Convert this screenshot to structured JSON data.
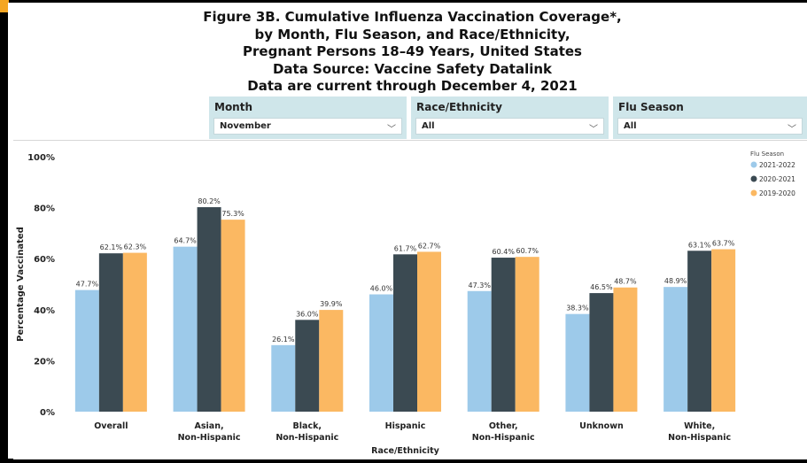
{
  "title_lines": [
    "Figure 3B. Cumulative Influenza Vaccination Coverage*,",
    "by Month, Flu Season, and Race/Ethnicity,",
    "Pregnant Persons 18–49 Years, United States",
    "Data Source: Vaccine Safety Datalink",
    "Data are current through December 4, 2021"
  ],
  "filters": {
    "month": {
      "label": "Month",
      "value": "November"
    },
    "race": {
      "label": "Race/Ethnicity",
      "value": "All"
    },
    "season": {
      "label": "Flu Season",
      "value": "All"
    }
  },
  "chart_data": {
    "type": "bar",
    "xlabel": "Race/Ethnicity",
    "ylabel": "Percentage Vaccinated",
    "ylim": [
      0,
      100
    ],
    "yticks": [
      "0%",
      "20%",
      "40%",
      "60%",
      "80%",
      "100%"
    ],
    "categories": [
      [
        "Overall"
      ],
      [
        "Asian,",
        "Non-Hispanic"
      ],
      [
        "Black,",
        "Non-Hispanic"
      ],
      [
        "Hispanic"
      ],
      [
        "Other,",
        "Non-Hispanic"
      ],
      [
        "Unknown"
      ],
      [
        "White,",
        "Non-Hispanic"
      ]
    ],
    "legend_title": "Flu Season",
    "legend_position": "top-right",
    "series": [
      {
        "name": "2021-2022",
        "color": "#9dcaea",
        "values": [
          47.7,
          64.7,
          26.1,
          46.0,
          47.3,
          38.3,
          48.9
        ]
      },
      {
        "name": "2020-2021",
        "color": "#3b4a52",
        "values": [
          62.1,
          80.2,
          36.0,
          61.7,
          60.4,
          46.5,
          63.1
        ]
      },
      {
        "name": "2019-2020",
        "color": "#fbb862",
        "values": [
          62.3,
          75.3,
          39.9,
          62.7,
          60.7,
          48.7,
          63.7
        ]
      }
    ]
  }
}
